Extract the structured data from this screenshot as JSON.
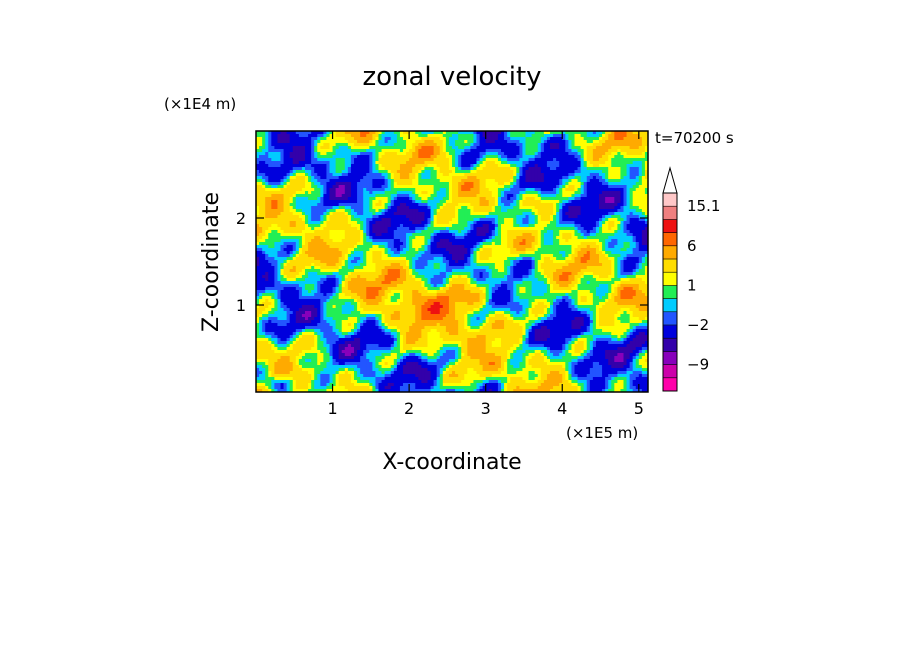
{
  "chart_data": {
    "type": "heatmap",
    "title": "zonal velocity",
    "xlabel": "X-coordinate",
    "ylabel": "Z-coordinate",
    "x_unit": "(×1E5 m)",
    "y_unit": "(×1E4 m)",
    "time_label": "t=70200 s",
    "xlim": [
      0,
      5.12
    ],
    "ylim": [
      0,
      3.0
    ],
    "x_ticks": [
      1,
      2,
      3,
      4,
      5
    ],
    "y_ticks": [
      1,
      2
    ],
    "colorbar": {
      "labels": [
        "15.1",
        "6",
        "1",
        "−2",
        "−9"
      ],
      "levels": [
        -15,
        -12,
        -9,
        -6,
        -4,
        -2,
        -1,
        0,
        1,
        2,
        4,
        6,
        9,
        12,
        15.1
      ],
      "colors": [
        "#ff00aa",
        "#cc00aa",
        "#8800bb",
        "#3300aa",
        "#0000dd",
        "#2255ff",
        "#00ccff",
        "#22ee55",
        "#ffff00",
        "#ffdd00",
        "#ffaa00",
        "#ff6600",
        "#ee1111",
        "#f08080",
        "#ffc8c8"
      ],
      "extend": "max"
    },
    "field_description": "turbulent zonal velocity field, mostly green/yellow/orange with cyan and blue patches"
  }
}
